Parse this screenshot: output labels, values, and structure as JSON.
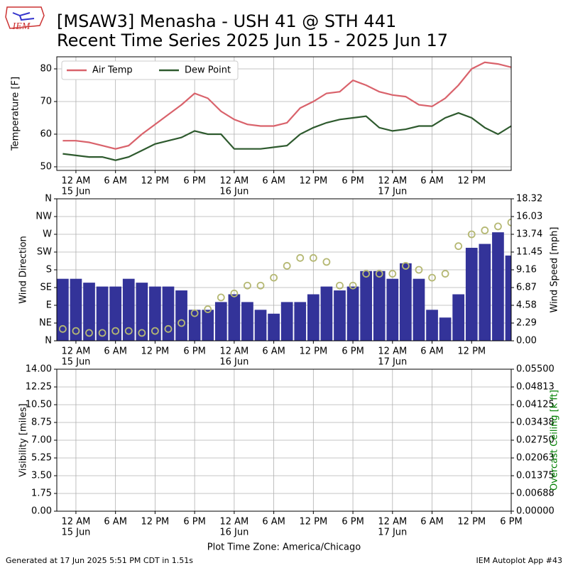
{
  "title": [
    "[MSAW3] Menasha - USH 41 @ STH 441",
    "Recent Time Series 2025 Jun 15 - 2025 Jun 17"
  ],
  "logo": "IEM",
  "footer": {
    "left": "Generated at 17 Jun 2025 5:51 PM CDT in 1.51s",
    "right": "IEM Autoplot App #43"
  },
  "chart_data": [
    {
      "type": "line",
      "ylabel": "Temperature [F]",
      "grid": true,
      "legend": "upper left",
      "xlim": [
        -2.9,
        66
      ],
      "ylim": [
        48.9,
        83.7
      ],
      "yticks": [
        50,
        60,
        70,
        80
      ],
      "xticks": [
        {
          "value": 0,
          "label": "12 AM"
        },
        {
          "value": 6,
          "label": "6 AM"
        },
        {
          "value": 12,
          "label": "12 PM"
        },
        {
          "value": 18,
          "label": "6 PM"
        },
        {
          "value": 24,
          "label": "12 AM"
        },
        {
          "value": 30,
          "label": "6 AM"
        },
        {
          "value": 36,
          "label": "12 PM"
        },
        {
          "value": 42,
          "label": "6 PM"
        },
        {
          "value": 48,
          "label": "12 AM"
        },
        {
          "value": 54,
          "label": "6 AM"
        },
        {
          "value": 60,
          "label": "12 PM"
        }
      ],
      "date_labels": [
        {
          "value": 0,
          "label": "15 Jun"
        },
        {
          "value": 24,
          "label": "16 Jun"
        },
        {
          "value": 48,
          "label": "17 Jun"
        }
      ],
      "x": [
        -2,
        0,
        2,
        4,
        6,
        8,
        10,
        12,
        14,
        16,
        18,
        20,
        22,
        24,
        26,
        28,
        30,
        32,
        34,
        36,
        38,
        40,
        42,
        44,
        46,
        48,
        50,
        52,
        54,
        56,
        58,
        60,
        62,
        64,
        66
      ],
      "series": [
        {
          "name": "Air Temp",
          "color": "#d9626b",
          "values": [
            58,
            58,
            57.5,
            56.5,
            55.5,
            56.5,
            60,
            63,
            66,
            69,
            72.5,
            71,
            67,
            64.5,
            63,
            62.5,
            62.5,
            63.5,
            68,
            70,
            72.5,
            73,
            76.5,
            75,
            73,
            72,
            71.5,
            69,
            68.5,
            71,
            75,
            80,
            82,
            81.5,
            80.5
          ]
        },
        {
          "name": "Dew Point",
          "color": "#2e5a2e",
          "values": [
            54,
            53.5,
            53,
            53,
            52,
            53,
            55,
            57,
            58,
            59,
            61,
            60,
            60,
            55.5,
            55.5,
            55.5,
            56,
            56.5,
            60,
            62,
            63.5,
            64.5,
            65,
            65.5,
            62,
            61,
            61.5,
            62.5,
            62.5,
            65,
            66.5,
            65,
            62,
            60,
            62.5
          ]
        }
      ]
    },
    {
      "type": "combo",
      "ylabel": "Wind Direction",
      "y2label": "Wind Speed [mph]",
      "grid": true,
      "xlim": [
        -2.9,
        66
      ],
      "ylim": [
        0,
        360
      ],
      "yticks": [
        {
          "value": 0,
          "label": "N"
        },
        {
          "value": 45,
          "label": "NE"
        },
        {
          "value": 90,
          "label": "E"
        },
        {
          "value": 135,
          "label": "SE"
        },
        {
          "value": 180,
          "label": "S"
        },
        {
          "value": 225,
          "label": "SW"
        },
        {
          "value": 270,
          "label": "W"
        },
        {
          "value": 315,
          "label": "NW"
        },
        {
          "value": 360,
          "label": "N"
        }
      ],
      "y2lim": [
        0,
        18.32
      ],
      "y2ticks": [
        {
          "value": 0,
          "label": "0.00"
        },
        2.29,
        4.58,
        6.87,
        9.16,
        11.45,
        13.74,
        16.03,
        18.32
      ],
      "xticks": [
        {
          "value": 0,
          "label": "12 AM"
        },
        {
          "value": 6,
          "label": "6 AM"
        },
        {
          "value": 12,
          "label": "12 PM"
        },
        {
          "value": 18,
          "label": "6 PM"
        },
        {
          "value": 24,
          "label": "12 AM"
        },
        {
          "value": 30,
          "label": "6 AM"
        },
        {
          "value": 36,
          "label": "12 PM"
        },
        {
          "value": 42,
          "label": "6 PM"
        },
        {
          "value": 48,
          "label": "12 AM"
        },
        {
          "value": 54,
          "label": "6 AM"
        },
        {
          "value": 60,
          "label": "12 PM"
        }
      ],
      "date_labels": [
        {
          "value": 0,
          "label": "15 Jun"
        },
        {
          "value": 24,
          "label": "16 Jun"
        },
        {
          "value": 48,
          "label": "17 Jun"
        }
      ],
      "x": [
        -2,
        0,
        2,
        4,
        6,
        8,
        10,
        12,
        14,
        16,
        18,
        20,
        22,
        24,
        26,
        28,
        30,
        32,
        34,
        36,
        38,
        40,
        42,
        44,
        46,
        48,
        50,
        52,
        54,
        56,
        58,
        60,
        62,
        64,
        66
      ],
      "series": [
        {
          "type": "bar",
          "axis": "y2",
          "color": "#333399",
          "values": [
            8,
            8,
            7.5,
            7,
            7,
            8,
            7.5,
            7,
            7,
            6.5,
            4,
            4,
            5,
            6,
            5,
            4,
            3.5,
            5,
            5,
            6,
            7,
            6.5,
            7,
            9,
            9,
            8,
            10,
            8,
            4,
            3,
            6,
            12,
            12.5,
            14,
            11
          ]
        },
        {
          "type": "scatter",
          "axis": "y",
          "color": "#b5b873",
          "values": [
            30,
            25,
            20,
            20,
            25,
            25,
            20,
            25,
            30,
            45,
            70,
            80,
            110,
            120,
            140,
            140,
            160,
            190,
            210,
            210,
            200,
            140,
            140,
            170,
            170,
            170,
            190,
            180,
            160,
            170,
            240,
            270,
            280,
            290,
            300
          ]
        }
      ]
    },
    {
      "type": "line",
      "ylabel": "Visibility [miles]",
      "y2label": "Overcast Ceiling [k ft]",
      "y2label_color": "#008000",
      "xlabel": "Plot Time Zone: America/Chicago",
      "grid": true,
      "xlim": [
        -2.9,
        66
      ],
      "ylim": [
        0,
        14
      ],
      "yticks": [
        {
          "value": 0,
          "label": "0.00"
        },
        1.75,
        {
          "value": 3.5,
          "label": "3.50"
        },
        5.25,
        {
          "value": 7,
          "label": "7.00"
        },
        8.75,
        {
          "value": 10.5,
          "label": "10.50"
        },
        12.25,
        {
          "value": 14,
          "label": "14.00"
        }
      ],
      "y2lim": [
        0,
        0.055
      ],
      "y2ticks": [
        {
          "value": 0,
          "label": "0.00000"
        },
        {
          "value": 0.006875,
          "label": "0.00688"
        },
        {
          "value": 0.01375,
          "label": "0.01375"
        },
        {
          "value": 0.020625,
          "label": "0.02063"
        },
        {
          "value": 0.0275,
          "label": "0.02750"
        },
        {
          "value": 0.034375,
          "label": "0.03438"
        },
        {
          "value": 0.04125,
          "label": "0.04125"
        },
        {
          "value": 0.048125,
          "label": "0.04813"
        },
        {
          "value": 0.055,
          "label": "0.05500"
        }
      ],
      "xticks": [
        {
          "value": 0,
          "label": "12 AM"
        },
        {
          "value": 6,
          "label": "6 AM"
        },
        {
          "value": 12,
          "label": "12 PM"
        },
        {
          "value": 18,
          "label": "6 PM"
        },
        {
          "value": 24,
          "label": "12 AM"
        },
        {
          "value": 30,
          "label": "6 AM"
        },
        {
          "value": 36,
          "label": "12 PM"
        },
        {
          "value": 42,
          "label": "6 PM"
        },
        {
          "value": 48,
          "label": "12 AM"
        },
        {
          "value": 54,
          "label": "6 AM"
        },
        {
          "value": 60,
          "label": "12 PM"
        },
        {
          "value": 66,
          "label": "6 PM"
        }
      ],
      "date_labels": [
        {
          "value": 0,
          "label": "15 Jun"
        },
        {
          "value": 24,
          "label": "16 Jun"
        },
        {
          "value": 48,
          "label": "17 Jun"
        }
      ],
      "series": []
    }
  ]
}
